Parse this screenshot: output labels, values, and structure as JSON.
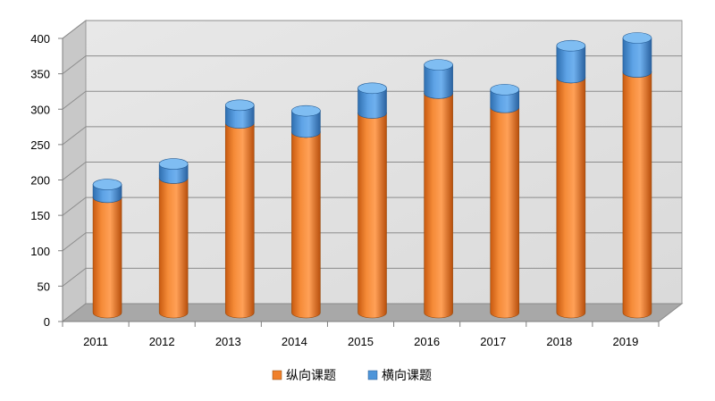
{
  "chart_data": {
    "type": "bar",
    "stacked": true,
    "style": "3d-cylinder",
    "categories": [
      "2011",
      "2012",
      "2013",
      "2014",
      "2015",
      "2016",
      "2017",
      "2018",
      "2019"
    ],
    "series": [
      {
        "name": "纵向课题",
        "color": "#F0802A",
        "values": [
          163,
          190,
          268,
          255,
          282,
          310,
          290,
          332,
          340
        ]
      },
      {
        "name": "横向课题",
        "color": "#4E95D9",
        "values": [
          18,
          20,
          25,
          30,
          35,
          40,
          25,
          45,
          48
        ]
      }
    ],
    "ylim": [
      0,
      400
    ],
    "yticks": [
      0,
      50,
      100,
      150,
      200,
      250,
      300,
      350,
      400
    ],
    "grid": true,
    "legend_position": "bottom"
  }
}
